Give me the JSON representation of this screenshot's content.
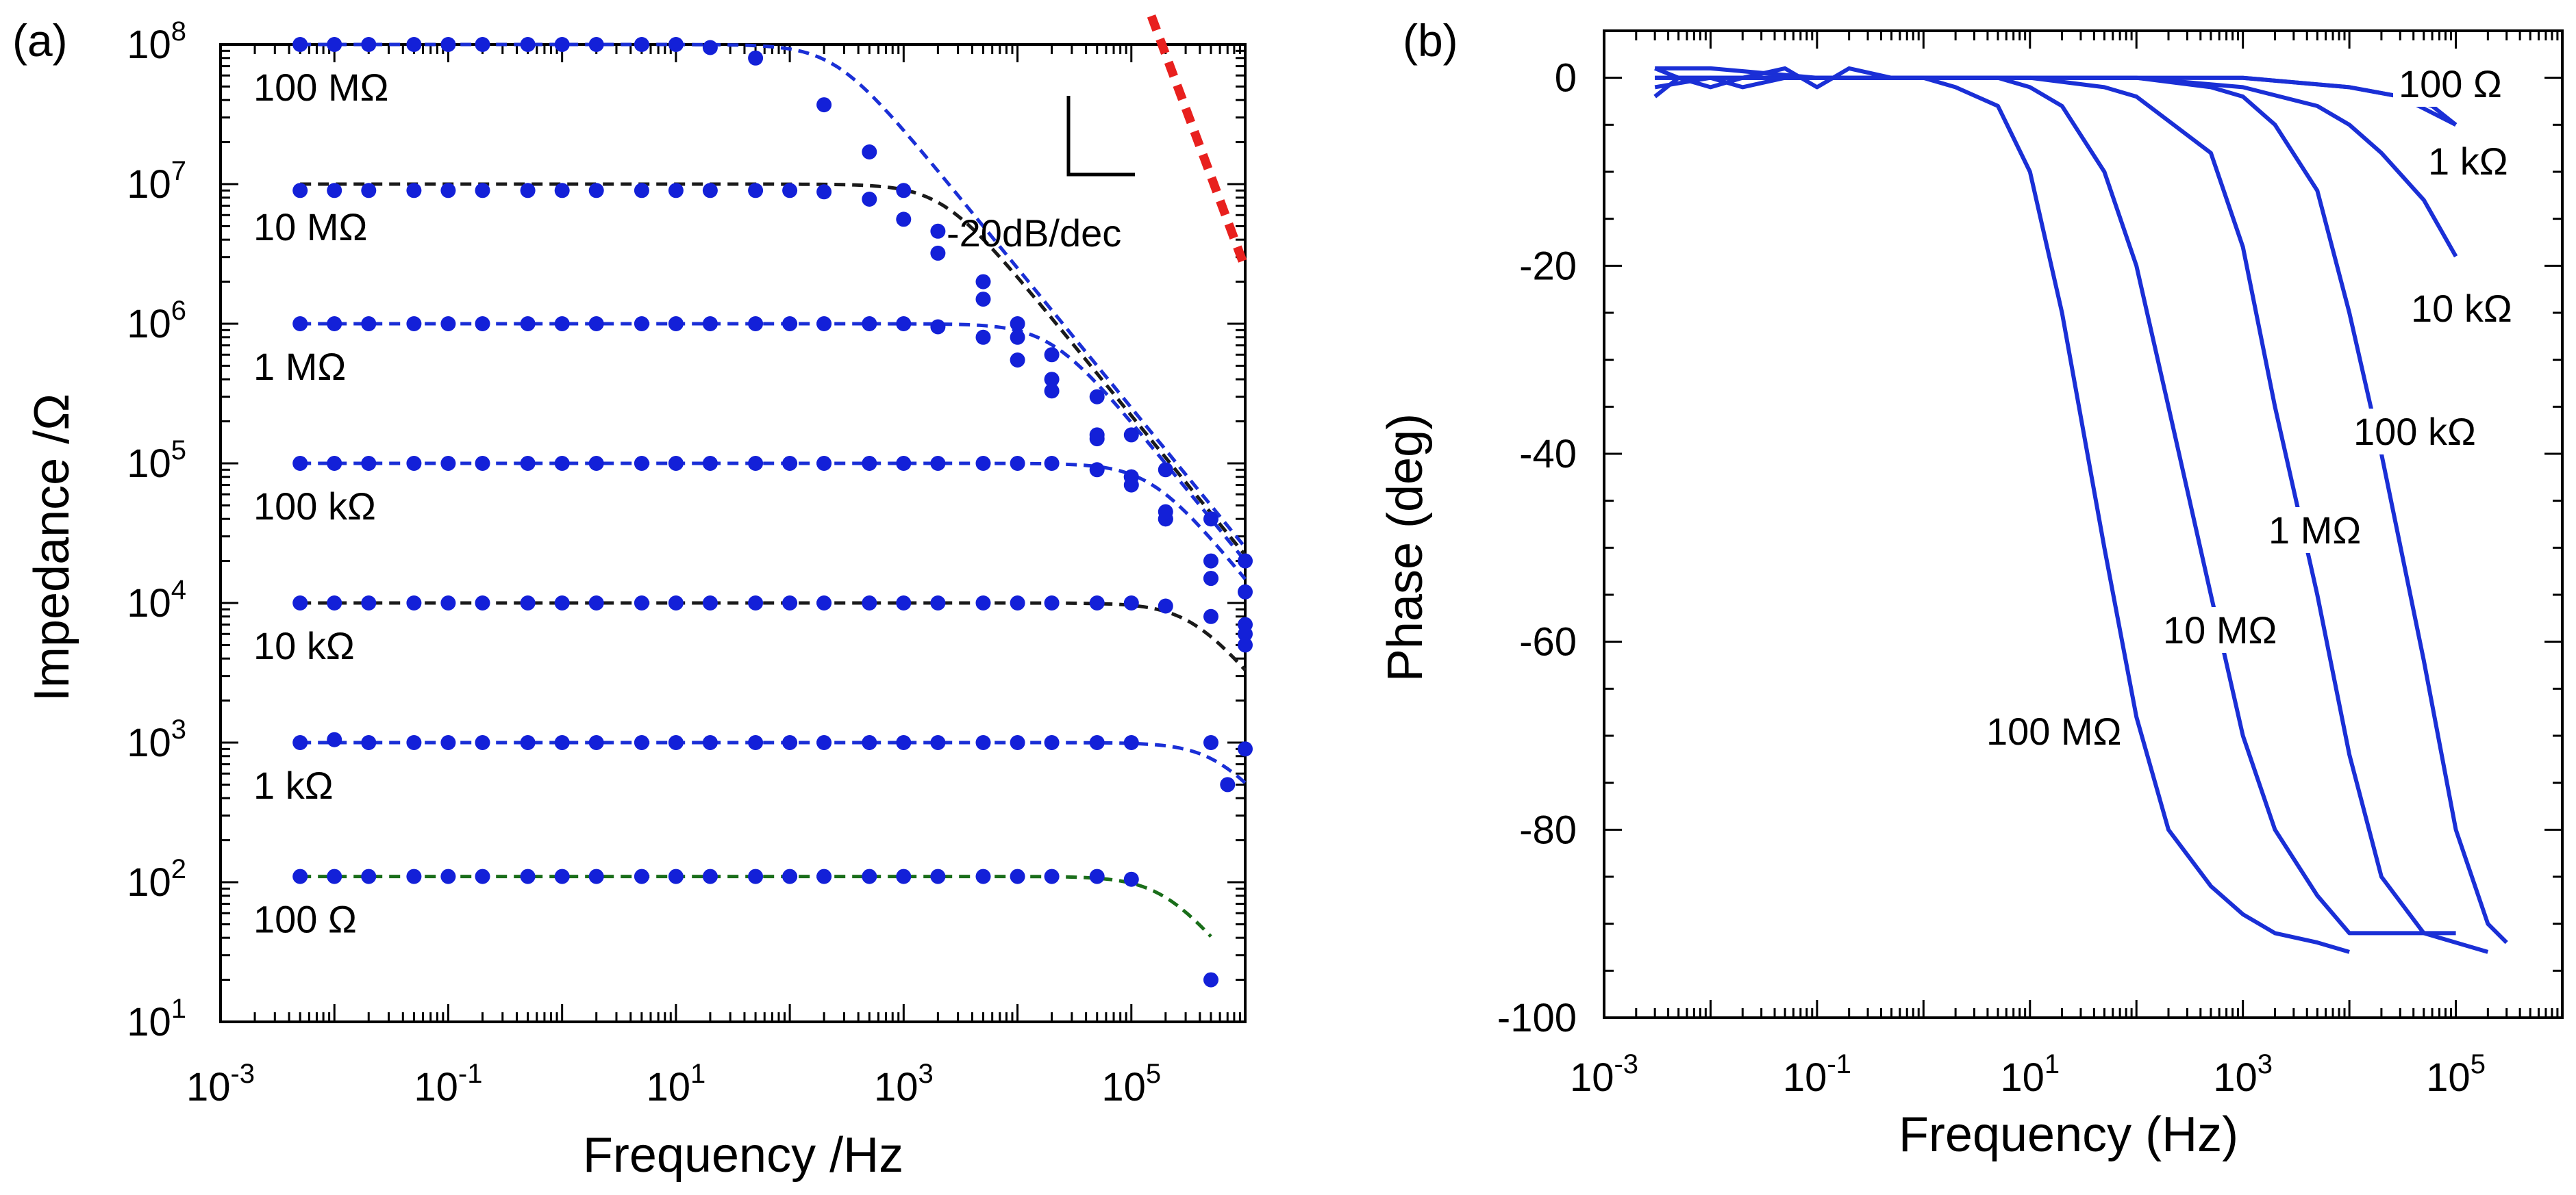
{
  "chart_data": [
    {
      "panel_label": "(a)",
      "type": "scatter",
      "scale": {
        "x": "log",
        "y": "log"
      },
      "xlabel": "Frequency /Hz",
      "ylabel": "Impedance /Ω",
      "xlim": [
        0.001,
        1000000
      ],
      "ylim": [
        10,
        100000000
      ],
      "x_ticks": [
        {
          "base": "10",
          "exp": "-3",
          "value": 0.001
        },
        {
          "base": "10",
          "exp": "-1",
          "value": 0.1
        },
        {
          "base": "10",
          "exp": "1",
          "value": 10
        },
        {
          "base": "10",
          "exp": "3",
          "value": 1000
        },
        {
          "base": "10",
          "exp": "5",
          "value": 100000
        }
      ],
      "y_ticks": [
        {
          "base": "10",
          "exp": "1",
          "value": 10
        },
        {
          "base": "10",
          "exp": "2",
          "value": 100
        },
        {
          "base": "10",
          "exp": "3",
          "value": 1000
        },
        {
          "base": "10",
          "exp": "4",
          "value": 10000
        },
        {
          "base": "10",
          "exp": "5",
          "value": 100000
        },
        {
          "base": "10",
          "exp": "6",
          "value": 1000000
        },
        {
          "base": "10",
          "exp": "7",
          "value": 10000000
        },
        {
          "base": "10",
          "exp": "8",
          "value": 100000000
        }
      ],
      "annotation": {
        "text": "-20dB/dec",
        "line_x": [
          150000,
          1000000
        ],
        "line_y": [
          160000000,
          2500000
        ],
        "color": "#e8201e"
      },
      "series": [
        {
          "name": "100 MΩ",
          "r": 100000000,
          "corner": 250,
          "fit_color": "#1a2fd6",
          "point_color": "#1320d8",
          "x": [
            0.005,
            0.01,
            0.02,
            0.05,
            0.1,
            0.2,
            0.5,
            1,
            2,
            5,
            10,
            20,
            50,
            200,
            500,
            1000,
            2000,
            5000,
            10000,
            20000,
            50000,
            100000,
            200000,
            500000,
            1000000
          ],
          "y": [
            100000000,
            100000000,
            100000000,
            100000000,
            100000000,
            100000000,
            100000000,
            100000000,
            100000000,
            100000000,
            100000000,
            95000000,
            80000000,
            37000000,
            17000000,
            9000000,
            4600000,
            2000000,
            1000000,
            600000,
            300000,
            160000,
            90000,
            40000,
            20000
          ]
        },
        {
          "name": "10 MΩ",
          "r": 10000000,
          "corner": 2200,
          "fit_color": "#1a1a1a",
          "point_color": "#1320d8",
          "x": [
            0.005,
            0.01,
            0.02,
            0.05,
            0.1,
            0.2,
            0.5,
            1,
            2,
            5,
            10,
            20,
            50,
            100,
            200,
            500,
            1000,
            2000,
            5000,
            10000,
            20000,
            50000,
            100000,
            200000,
            500000,
            1000000
          ],
          "y": [
            9000000,
            9000000,
            9000000,
            9000000,
            9000000,
            9000000,
            9000000,
            9000000,
            9000000,
            9000000,
            9000000,
            9000000,
            9000000,
            9000000,
            8800000,
            7800000,
            5600000,
            3200000,
            1500000,
            800000,
            400000,
            160000,
            80000,
            40000,
            15000,
            6000
          ]
        },
        {
          "name": "1 MΩ",
          "r": 1000000,
          "corner": 20000,
          "fit_color": "#1a2fd6",
          "point_color": "#1320d8",
          "x": [
            0.005,
            0.01,
            0.02,
            0.05,
            0.1,
            0.2,
            0.5,
            1,
            2,
            5,
            10,
            20,
            50,
            100,
            200,
            500,
            1000,
            2000,
            5000,
            10000,
            20000,
            50000,
            100000,
            200000,
            500000,
            1000000
          ],
          "y": [
            1000000,
            1000000,
            1000000,
            1000000,
            1000000,
            1000000,
            1000000,
            1000000,
            1000000,
            1000000,
            1000000,
            1000000,
            1000000,
            1000000,
            1000000,
            1000000,
            1000000,
            950000,
            800000,
            550000,
            330000,
            150000,
            80000,
            40000,
            15000,
            7000
          ]
        },
        {
          "name": "100 kΩ",
          "r": 100000,
          "corner": 150000,
          "fit_color": "#1a2fd6",
          "point_color": "#1320d8",
          "x": [
            0.005,
            0.01,
            0.02,
            0.05,
            0.1,
            0.2,
            0.5,
            1,
            2,
            5,
            10,
            20,
            50,
            100,
            200,
            500,
            1000,
            2000,
            5000,
            10000,
            20000,
            50000,
            100000,
            200000,
            500000,
            1000000
          ],
          "y": [
            100000,
            100000,
            100000,
            100000,
            100000,
            100000,
            100000,
            100000,
            100000,
            100000,
            100000,
            100000,
            100000,
            100000,
            100000,
            100000,
            100000,
            100000,
            100000,
            100000,
            100000,
            90000,
            70000,
            45000,
            20000,
            12000
          ]
        },
        {
          "name": "10 kΩ",
          "r": 10000,
          "corner": 350000,
          "fit_color": "#1a1a1a",
          "point_color": "#1320d8",
          "x": [
            0.005,
            0.01,
            0.02,
            0.05,
            0.1,
            0.2,
            0.5,
            1,
            2,
            5,
            10,
            20,
            50,
            100,
            200,
            500,
            1000,
            2000,
            5000,
            10000,
            20000,
            50000,
            100000,
            200000,
            500000,
            1000000
          ],
          "y": [
            10000,
            10000,
            10000,
            10000,
            10000,
            10000,
            10000,
            10000,
            10000,
            10000,
            10000,
            10000,
            10000,
            10000,
            10000,
            10000,
            10000,
            10000,
            10000,
            10000,
            10000,
            10000,
            10000,
            9500,
            8000,
            5000
          ]
        },
        {
          "name": "1 kΩ",
          "r": 1000,
          "corner": 600000,
          "fit_color": "#1a2fd6",
          "point_color": "#1320d8",
          "x": [
            0.005,
            0.01,
            0.02,
            0.05,
            0.1,
            0.2,
            0.5,
            1,
            2,
            5,
            10,
            20,
            50,
            100,
            200,
            500,
            1000,
            2000,
            5000,
            10000,
            20000,
            50000,
            100000,
            500000,
            700000,
            1000000
          ],
          "y": [
            1000,
            1050,
            1000,
            1000,
            1000,
            1000,
            1000,
            1000,
            1000,
            1000,
            1000,
            1000,
            1000,
            1000,
            1000,
            1000,
            1000,
            1000,
            1000,
            1000,
            1000,
            1000,
            1000,
            1000,
            500,
            900
          ]
        },
        {
          "name": "100 Ω",
          "r": 110,
          "corner": 200000,
          "fit_color": "#1a6e1a",
          "point_color": "#1320d8",
          "x": [
            0.005,
            0.01,
            0.02,
            0.05,
            0.1,
            0.2,
            0.5,
            1,
            2,
            5,
            10,
            20,
            50,
            100,
            200,
            500,
            1000,
            2000,
            5000,
            10000,
            20000,
            50000,
            100000,
            500000
          ],
          "y": [
            110,
            110,
            110,
            110,
            110,
            110,
            110,
            110,
            110,
            110,
            110,
            110,
            110,
            110,
            110,
            110,
            110,
            110,
            110,
            110,
            110,
            110,
            105,
            20
          ]
        }
      ]
    },
    {
      "panel_label": "(b)",
      "type": "line",
      "scale": {
        "x": "log",
        "y": "linear"
      },
      "xlabel": "Frequency (Hz)",
      "ylabel": "Phase (deg)",
      "xlim": [
        0.001,
        1000000
      ],
      "ylim": [
        -100,
        5
      ],
      "x_ticks": [
        {
          "base": "10",
          "exp": "-3",
          "value": 0.001
        },
        {
          "base": "10",
          "exp": "-1",
          "value": 0.1
        },
        {
          "base": "10",
          "exp": "1",
          "value": 10
        },
        {
          "base": "10",
          "exp": "3",
          "value": 1000
        },
        {
          "base": "10",
          "exp": "5",
          "value": 100000
        }
      ],
      "y_ticks": [
        "0",
        "-20",
        "-40",
        "-60",
        "-80",
        "-100"
      ],
      "series": [
        {
          "name": "100 MΩ",
          "color": "#1a2fd6",
          "x": [
            0.003,
            0.005,
            0.01,
            0.02,
            0.05,
            0.1,
            0.2,
            0.5,
            1,
            2,
            5,
            10,
            20,
            50,
            100,
            200,
            500,
            1000,
            2000,
            5000,
            10000
          ],
          "y": [
            -2,
            0,
            -1,
            0,
            1,
            -1,
            1,
            0,
            0,
            -1,
            -3,
            -10,
            -25,
            -50,
            -68,
            -80,
            -86,
            -89,
            -91,
            -92,
            -93
          ]
        },
        {
          "name": "10 MΩ",
          "color": "#1a2fd6",
          "x": [
            0.003,
            0.005,
            0.01,
            0.02,
            0.05,
            0.1,
            0.2,
            0.5,
            1,
            2,
            5,
            10,
            20,
            50,
            100,
            200,
            500,
            1000,
            2000,
            5000,
            10000,
            100000
          ],
          "y": [
            1,
            0,
            0,
            -1,
            0,
            0,
            0,
            0,
            0,
            0,
            0,
            -1,
            -3,
            -10,
            -20,
            -35,
            -55,
            -70,
            -80,
            -87,
            -91,
            -91
          ]
        },
        {
          "name": "1 MΩ",
          "color": "#1a2fd6",
          "x": [
            0.003,
            0.01,
            0.1,
            1,
            10,
            50,
            100,
            500,
            1000,
            2000,
            5000,
            10000,
            20000,
            50000,
            200000
          ],
          "y": [
            -1,
            0,
            0,
            0,
            0,
            -1,
            -2,
            -8,
            -18,
            -35,
            -55,
            -72,
            -85,
            -91,
            -93
          ]
        },
        {
          "name": "100 kΩ",
          "color": "#1a2fd6",
          "x": [
            0.003,
            0.01,
            0.1,
            1,
            10,
            100,
            500,
            1000,
            2000,
            5000,
            10000,
            20000,
            50000,
            100000,
            200000,
            300000
          ],
          "y": [
            0,
            0,
            0,
            0,
            0,
            0,
            -1,
            -2,
            -5,
            -12,
            -25,
            -40,
            -62,
            -80,
            -90,
            -92
          ]
        },
        {
          "name": "10 kΩ",
          "color": "#1a2fd6",
          "x": [
            0.003,
            0.01,
            0.1,
            1,
            10,
            100,
            1000,
            5000,
            10000,
            20000,
            50000,
            100000
          ],
          "y": [
            0,
            0,
            0,
            0,
            0,
            0,
            -1,
            -3,
            -5,
            -8,
            -13,
            -19
          ]
        },
        {
          "name": "1 kΩ",
          "color": "#1a2fd6",
          "x": [
            0.003,
            0.01,
            0.1,
            1,
            10,
            100,
            1000,
            10000,
            30000,
            60000,
            100000
          ],
          "y": [
            0,
            0,
            0,
            0,
            0,
            0,
            0,
            -1,
            -2,
            -3,
            -5
          ]
        },
        {
          "name": "100 Ω",
          "color": "#1a2fd6",
          "x": [
            0.003,
            0.01,
            0.1,
            1,
            10,
            100,
            1000,
            10000,
            30000,
            100000
          ],
          "y": [
            1,
            1,
            0,
            0,
            0,
            0,
            0,
            -1,
            -2,
            -5
          ]
        }
      ]
    }
  ]
}
